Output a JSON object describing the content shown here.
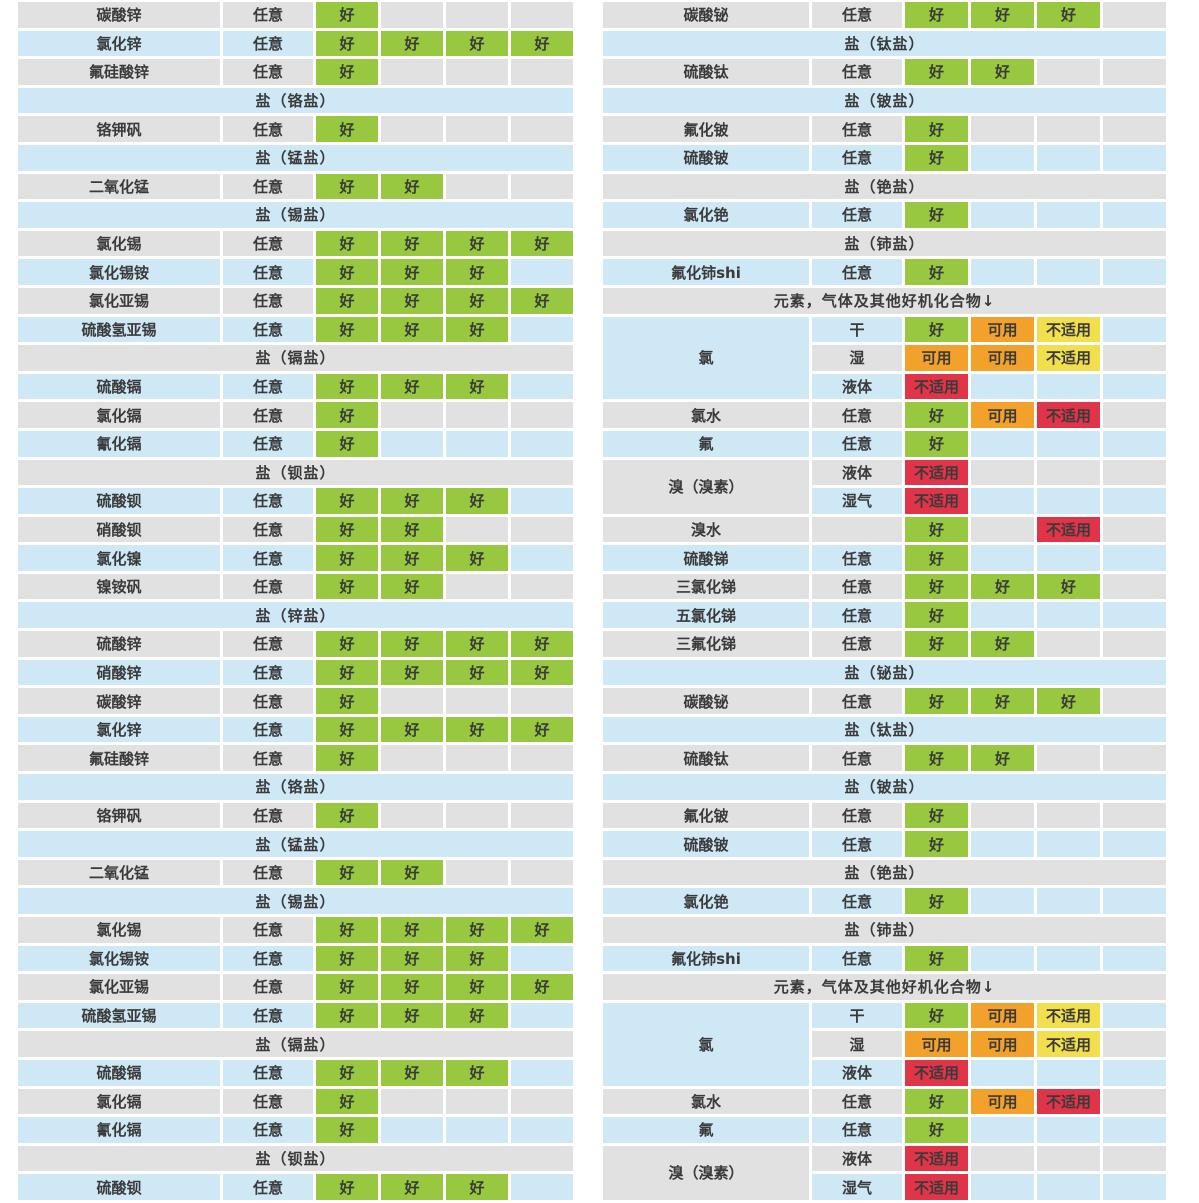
{
  "palette": {
    "row_gray": "#e1e1e1",
    "row_blue": "#cfe8f6",
    "text": "#3a3a3a",
    "background": "#ffffff"
  },
  "ratings": {
    "G": {
      "label": "好",
      "color": "#97c83f"
    },
    "U": {
      "label": "可用",
      "color": "#f2a22a"
    },
    "NY": {
      "label": "不适用",
      "color": "#f1df4d"
    },
    "NR": {
      "label": "不适用",
      "color": "#e03449"
    }
  },
  "left_table": {
    "rows": [
      {
        "t": "d",
        "name": "碳酸锌",
        "cond": "任意",
        "cells": [
          "G",
          "",
          "",
          ""
        ]
      },
      {
        "t": "d",
        "name": "氯化锌",
        "cond": "任意",
        "cells": [
          "G",
          "G",
          "G",
          "G"
        ]
      },
      {
        "t": "d",
        "name": "氟硅酸锌",
        "cond": "任意",
        "cells": [
          "G",
          "",
          "",
          ""
        ]
      },
      {
        "t": "h",
        "label": "盐（铬盐）"
      },
      {
        "t": "d",
        "name": "铬钾矾",
        "cond": "任意",
        "cells": [
          "G",
          "",
          "",
          ""
        ]
      },
      {
        "t": "h",
        "label": "盐（锰盐）"
      },
      {
        "t": "d",
        "name": "二氧化锰",
        "cond": "任意",
        "cells": [
          "G",
          "G",
          "",
          ""
        ]
      },
      {
        "t": "h",
        "label": "盐（锡盐）"
      },
      {
        "t": "d",
        "name": "氯化锡",
        "cond": "任意",
        "cells": [
          "G",
          "G",
          "G",
          "G"
        ]
      },
      {
        "t": "d",
        "name": "氯化锡铵",
        "cond": "任意",
        "cells": [
          "G",
          "G",
          "G",
          ""
        ]
      },
      {
        "t": "d",
        "name": "氯化亚锡",
        "cond": "任意",
        "cells": [
          "G",
          "G",
          "G",
          "G"
        ]
      },
      {
        "t": "d",
        "name": "硫酸氢亚锡",
        "cond": "任意",
        "cells": [
          "G",
          "G",
          "G",
          ""
        ]
      },
      {
        "t": "h",
        "label": "盐（镉盐）"
      },
      {
        "t": "d",
        "name": "硫酸镉",
        "cond": "任意",
        "cells": [
          "G",
          "G",
          "G",
          ""
        ]
      },
      {
        "t": "d",
        "name": "氯化镉",
        "cond": "任意",
        "cells": [
          "G",
          "",
          "",
          ""
        ]
      },
      {
        "t": "d",
        "name": "氰化镉",
        "cond": "任意",
        "cells": [
          "G",
          "",
          "",
          ""
        ]
      },
      {
        "t": "h",
        "label": "盐（钡盐）"
      },
      {
        "t": "d",
        "name": "硫酸钡",
        "cond": "任意",
        "cells": [
          "G",
          "G",
          "G",
          ""
        ]
      },
      {
        "t": "d",
        "name": "硝酸钡",
        "cond": "任意",
        "cells": [
          "G",
          "G",
          "",
          ""
        ]
      },
      {
        "t": "d",
        "name": "氯化镍",
        "cond": "任意",
        "cells": [
          "G",
          "G",
          "G",
          ""
        ]
      },
      {
        "t": "d",
        "name": "镍铵矾",
        "cond": "任意",
        "cells": [
          "G",
          "G",
          "",
          ""
        ]
      },
      {
        "t": "h",
        "label": "盐（锌盐）"
      },
      {
        "t": "d",
        "name": "硫酸锌",
        "cond": "任意",
        "cells": [
          "G",
          "G",
          "G",
          "G"
        ]
      },
      {
        "t": "d",
        "name": "硝酸锌",
        "cond": "任意",
        "cells": [
          "G",
          "G",
          "G",
          "G"
        ]
      },
      {
        "t": "d",
        "name": "碳酸锌",
        "cond": "任意",
        "cells": [
          "G",
          "",
          "",
          ""
        ]
      },
      {
        "t": "d",
        "name": "氯化锌",
        "cond": "任意",
        "cells": [
          "G",
          "G",
          "G",
          "G"
        ]
      },
      {
        "t": "d",
        "name": "氟硅酸锌",
        "cond": "任意",
        "cells": [
          "G",
          "",
          "",
          ""
        ]
      },
      {
        "t": "h",
        "label": "盐（铬盐）"
      },
      {
        "t": "d",
        "name": "铬钾矾",
        "cond": "任意",
        "cells": [
          "G",
          "",
          "",
          ""
        ]
      },
      {
        "t": "h",
        "label": "盐（锰盐）"
      },
      {
        "t": "d",
        "name": "二氧化锰",
        "cond": "任意",
        "cells": [
          "G",
          "G",
          "",
          ""
        ]
      },
      {
        "t": "h",
        "label": "盐（锡盐）"
      },
      {
        "t": "d",
        "name": "氯化锡",
        "cond": "任意",
        "cells": [
          "G",
          "G",
          "G",
          "G"
        ]
      },
      {
        "t": "d",
        "name": "氯化锡铵",
        "cond": "任意",
        "cells": [
          "G",
          "G",
          "G",
          ""
        ]
      },
      {
        "t": "d",
        "name": "氯化亚锡",
        "cond": "任意",
        "cells": [
          "G",
          "G",
          "G",
          "G"
        ]
      },
      {
        "t": "d",
        "name": "硫酸氢亚锡",
        "cond": "任意",
        "cells": [
          "G",
          "G",
          "G",
          ""
        ]
      },
      {
        "t": "h",
        "label": "盐（镉盐）"
      },
      {
        "t": "d",
        "name": "硫酸镉",
        "cond": "任意",
        "cells": [
          "G",
          "G",
          "G",
          ""
        ]
      },
      {
        "t": "d",
        "name": "氯化镉",
        "cond": "任意",
        "cells": [
          "G",
          "",
          "",
          ""
        ]
      },
      {
        "t": "d",
        "name": "氰化镉",
        "cond": "任意",
        "cells": [
          "G",
          "",
          "",
          ""
        ]
      },
      {
        "t": "h",
        "label": "盐（钡盐）"
      },
      {
        "t": "d",
        "name": "硫酸钡",
        "cond": "任意",
        "cells": [
          "G",
          "G",
          "G",
          ""
        ]
      }
    ]
  },
  "right_table": {
    "rows": [
      {
        "t": "d",
        "name": "碳酸铋",
        "cond": "任意",
        "cells": [
          "G",
          "G",
          "G",
          ""
        ]
      },
      {
        "t": "h",
        "label": "盐（钛盐）"
      },
      {
        "t": "d",
        "name": "硫酸钛",
        "cond": "任意",
        "cells": [
          "G",
          "G",
          "",
          ""
        ]
      },
      {
        "t": "h",
        "label": "盐（铍盐）"
      },
      {
        "t": "d",
        "name": "氟化铍",
        "cond": "任意",
        "cells": [
          "G",
          "",
          "",
          ""
        ]
      },
      {
        "t": "d",
        "name": "硫酸铍",
        "cond": "任意",
        "cells": [
          "G",
          "",
          "",
          ""
        ]
      },
      {
        "t": "h",
        "label": "盐（铯盐）"
      },
      {
        "t": "d",
        "name": "氯化铯",
        "cond": "任意",
        "cells": [
          "G",
          "",
          "",
          ""
        ]
      },
      {
        "t": "h",
        "label": "盐（铈盐）"
      },
      {
        "t": "d",
        "name": "氟化铈shi",
        "cond": "任意",
        "cells": [
          "G",
          "",
          "",
          ""
        ]
      },
      {
        "t": "h",
        "label": "元素，气体及其他好机化合物↓"
      },
      {
        "t": "g",
        "name": "氯",
        "span": 3,
        "subs": [
          {
            "cond": "干",
            "cells": [
              "G",
              "U",
              "NY",
              ""
            ]
          },
          {
            "cond": "湿",
            "cells": [
              "U",
              "U",
              "NY",
              ""
            ]
          },
          {
            "cond": "液体",
            "cells": [
              "NR",
              "",
              "",
              ""
            ]
          }
        ]
      },
      {
        "t": "d",
        "name": "氯水",
        "cond": "任意",
        "cells": [
          "G",
          "U",
          "NR",
          ""
        ]
      },
      {
        "t": "d",
        "name": "氟",
        "cond": "任意",
        "cells": [
          "G",
          "",
          "",
          ""
        ]
      },
      {
        "t": "g",
        "name": "溴（溴素）",
        "span": 2,
        "subs": [
          {
            "cond": "液体",
            "cells": [
              "NR",
              "",
              "",
              ""
            ]
          },
          {
            "cond": "湿气",
            "cells": [
              "NR",
              "",
              "",
              ""
            ]
          }
        ]
      },
      {
        "t": "d",
        "name": "溴水",
        "cond": "",
        "cells": [
          "G",
          "",
          "NR",
          ""
        ]
      },
      {
        "t": "d",
        "name": "硫酸锑",
        "cond": "任意",
        "cells": [
          "G",
          "",
          "",
          ""
        ]
      },
      {
        "t": "d",
        "name": "三氯化锑",
        "cond": "任意",
        "cells": [
          "G",
          "G",
          "G",
          ""
        ]
      },
      {
        "t": "d",
        "name": "五氯化锑",
        "cond": "任意",
        "cells": [
          "G",
          "",
          "",
          ""
        ]
      },
      {
        "t": "d",
        "name": "三氟化锑",
        "cond": "任意",
        "cells": [
          "G",
          "G",
          "",
          ""
        ]
      },
      {
        "t": "h",
        "label": "盐（铋盐）"
      },
      {
        "t": "d",
        "name": "碳酸铋",
        "cond": "任意",
        "cells": [
          "G",
          "G",
          "G",
          ""
        ]
      },
      {
        "t": "h",
        "label": "盐（钛盐）"
      },
      {
        "t": "d",
        "name": "硫酸钛",
        "cond": "任意",
        "cells": [
          "G",
          "G",
          "",
          ""
        ]
      },
      {
        "t": "h",
        "label": "盐（铍盐）"
      },
      {
        "t": "d",
        "name": "氟化铍",
        "cond": "任意",
        "cells": [
          "G",
          "",
          "",
          ""
        ]
      },
      {
        "t": "d",
        "name": "硫酸铍",
        "cond": "任意",
        "cells": [
          "G",
          "",
          "",
          ""
        ]
      },
      {
        "t": "h",
        "label": "盐（铯盐）"
      },
      {
        "t": "d",
        "name": "氯化铯",
        "cond": "任意",
        "cells": [
          "G",
          "",
          "",
          ""
        ]
      },
      {
        "t": "h",
        "label": "盐（铈盐）"
      },
      {
        "t": "d",
        "name": "氟化铈shi",
        "cond": "任意",
        "cells": [
          "G",
          "",
          "",
          ""
        ]
      },
      {
        "t": "h",
        "label": "元素，气体及其他好机化合物↓"
      },
      {
        "t": "g",
        "name": "氯",
        "span": 3,
        "subs": [
          {
            "cond": "干",
            "cells": [
              "G",
              "U",
              "NY",
              ""
            ]
          },
          {
            "cond": "湿",
            "cells": [
              "U",
              "U",
              "NY",
              ""
            ]
          },
          {
            "cond": "液体",
            "cells": [
              "NR",
              "",
              "",
              ""
            ]
          }
        ]
      },
      {
        "t": "d",
        "name": "氯水",
        "cond": "任意",
        "cells": [
          "G",
          "U",
          "NR",
          ""
        ]
      },
      {
        "t": "d",
        "name": "氟",
        "cond": "任意",
        "cells": [
          "G",
          "",
          "",
          ""
        ]
      },
      {
        "t": "g",
        "name": "溴（溴素）",
        "span": 2,
        "subs": [
          {
            "cond": "液体",
            "cells": [
              "NR",
              "",
              "",
              ""
            ]
          },
          {
            "cond": "湿气",
            "cells": [
              "NR",
              "",
              "",
              ""
            ]
          }
        ]
      }
    ]
  }
}
